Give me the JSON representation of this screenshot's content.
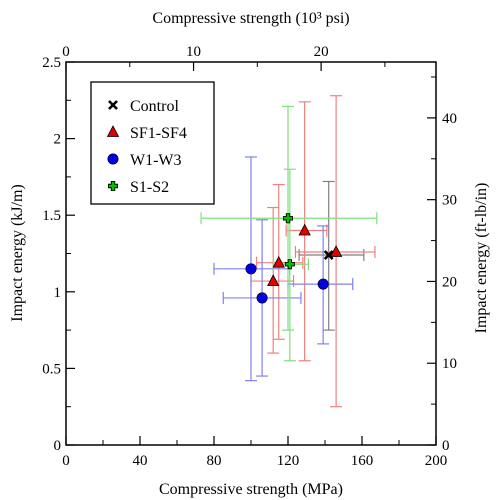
{
  "chart_data": {
    "type": "scatter",
    "xlabel": "Compressive strength (MPa)",
    "ylabel": "Impact energy (kJ/m)",
    "x2label": "Compressive strength (10³ psi)",
    "y2label": "Impact energy (ft-lb/in)",
    "xlim": [
      0,
      200
    ],
    "ylim": [
      0,
      2.5
    ],
    "x2lim": [
      0,
      29.0075
    ],
    "y2lim": [
      0,
      46.8345
    ],
    "xticks": [
      "0",
      "40",
      "80",
      "120",
      "160",
      "200"
    ],
    "xtick_values": [
      0,
      40,
      80,
      120,
      160,
      200
    ],
    "yticks": [
      "0",
      "0.5",
      "1",
      "1.5",
      "2",
      "2.5"
    ],
    "ytick_values": [
      0,
      0.5,
      1,
      1.5,
      2,
      2.5
    ],
    "x2ticks": [
      "0",
      "10",
      "20"
    ],
    "x2tick_values": [
      0,
      10,
      20
    ],
    "y2ticks": [
      "0",
      "10",
      "20",
      "30",
      "40"
    ],
    "y2tick_values": [
      0,
      10,
      20,
      30,
      40
    ],
    "grid": false,
    "legend_position": "top-left",
    "series": [
      {
        "name": "Control",
        "marker": "x",
        "color": "#000000",
        "errcolor": "#808080",
        "points": [
          {
            "x": 142,
            "y": 1.24,
            "xerr": [
              126,
              161
            ],
            "yerr": [
              0.75,
              1.72
            ]
          }
        ]
      },
      {
        "name": "SF1-SF4",
        "marker": "triangle",
        "color": "#e00000",
        "errcolor": "#f08080",
        "points": [
          {
            "x": 112,
            "y": 1.07,
            "xerr": [
              100,
              123
            ],
            "yerr": [
              0.6,
              1.55
            ]
          },
          {
            "x": 115,
            "y": 1.19,
            "xerr": [
              103,
              128
            ],
            "yerr": [
              0.69,
              1.7
            ]
          },
          {
            "x": 129,
            "y": 1.4,
            "xerr": [
              119,
              141
            ],
            "yerr": [
              0.55,
              2.24
            ]
          },
          {
            "x": 146,
            "y": 1.26,
            "xerr": [
              124,
              167
            ],
            "yerr": [
              0.25,
              2.28
            ]
          }
        ]
      },
      {
        "name": "W1-W3",
        "marker": "circle",
        "color": "#0000e0",
        "errcolor": "#8080f0",
        "points": [
          {
            "x": 100,
            "y": 1.15,
            "xerr": [
              80,
              121
            ],
            "yerr": [
              0.42,
              1.88
            ]
          },
          {
            "x": 106,
            "y": 0.96,
            "xerr": [
              85,
              127
            ],
            "yerr": [
              0.45,
              1.47
            ]
          },
          {
            "x": 139,
            "y": 1.05,
            "xerr": [
              120,
              155
            ],
            "yerr": [
              0.66,
              1.43
            ]
          }
        ]
      },
      {
        "name": "S1-S2",
        "marker": "plus",
        "color": "#00c000",
        "errcolor": "#80e080",
        "points": [
          {
            "x": 120,
            "y": 1.48,
            "xerr": [
              73,
              168
            ],
            "yerr": [
              0.75,
              2.21
            ]
          },
          {
            "x": 121,
            "y": 1.18,
            "xerr": [
              112,
              131
            ],
            "yerr": [
              0.55,
              1.8
            ]
          }
        ]
      }
    ]
  }
}
